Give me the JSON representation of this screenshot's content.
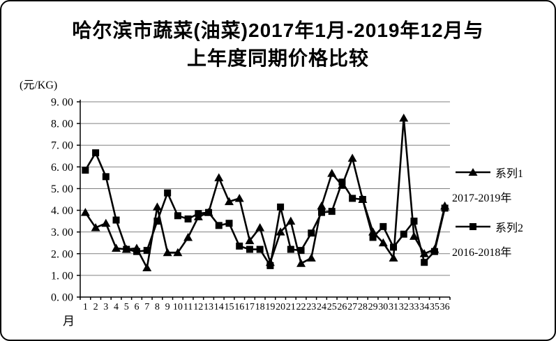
{
  "title": {
    "line1": "哈尔滨市蔬菜(油菜)2017年1月-2019年12月与",
    "line2": "上年度同期价格比较"
  },
  "y_axis": {
    "unit_label": "(元/KG)",
    "ticks": [
      "0. 00",
      "1. 00",
      "2. 00",
      "3. 00",
      "4. 00",
      "5. 00",
      "6. 00",
      "7. 00",
      "8. 00",
      "9. 00"
    ]
  },
  "x_axis": {
    "title": "月",
    "ticks": [
      "1",
      "2",
      "3",
      "4",
      "5",
      "6",
      "7",
      "8",
      "9",
      "10",
      "11",
      "12",
      "13",
      "14",
      "15",
      "16",
      "17",
      "18",
      "19",
      "20",
      "21",
      "22",
      "23",
      "24",
      "25",
      "26",
      "27",
      "28",
      "29",
      "30",
      "31",
      "32",
      "33",
      "34",
      "35",
      "36"
    ]
  },
  "legend": [
    {
      "series": "系列1",
      "marker": "triangle",
      "period": "2017-2019年"
    },
    {
      "series": "系列2",
      "marker": "square",
      "period": "2016-2018年"
    }
  ],
  "colors": {
    "line": "#000000",
    "grid": "#808080",
    "axis": "#000000",
    "background": "#ffffff",
    "border": "#000000"
  },
  "chart_data": {
    "type": "line",
    "title": "哈尔滨市蔬菜(油菜)2017年1月-2019年12月与上年度同期价格比较",
    "xlabel": "月",
    "ylabel": "(元/KG)",
    "x": [
      1,
      2,
      3,
      4,
      5,
      6,
      7,
      8,
      9,
      10,
      11,
      12,
      13,
      14,
      15,
      16,
      17,
      18,
      19,
      20,
      21,
      22,
      23,
      24,
      25,
      26,
      27,
      28,
      29,
      30,
      31,
      32,
      33,
      34,
      35,
      36
    ],
    "ylim": [
      0,
      9
    ],
    "ytick_step": 1,
    "grid": true,
    "legend_position": "right",
    "series": [
      {
        "name": "系列1",
        "period": "2017-2019年",
        "marker": "triangle",
        "values": [
          3.9,
          3.2,
          3.4,
          2.25,
          2.2,
          2.25,
          1.35,
          4.15,
          2.05,
          2.05,
          2.75,
          3.7,
          3.9,
          5.5,
          4.4,
          4.55,
          2.6,
          3.2,
          1.6,
          3.0,
          3.5,
          1.55,
          1.8,
          4.2,
          5.7,
          5.15,
          6.4,
          4.5,
          3.0,
          2.5,
          1.8,
          8.25,
          2.8,
          2.0,
          2.2,
          4.2
        ]
      },
      {
        "name": "系列2",
        "period": "2016-2018年",
        "marker": "square",
        "values": [
          5.85,
          6.65,
          5.55,
          3.55,
          2.2,
          2.1,
          2.15,
          3.5,
          4.8,
          3.75,
          3.6,
          3.85,
          3.9,
          3.3,
          3.4,
          2.35,
          2.2,
          2.2,
          1.45,
          4.15,
          2.2,
          2.15,
          2.95,
          3.9,
          3.95,
          5.3,
          4.55,
          4.5,
          2.75,
          3.25,
          2.3,
          2.9,
          3.5,
          1.6,
          2.1,
          4.1
        ]
      }
    ]
  }
}
